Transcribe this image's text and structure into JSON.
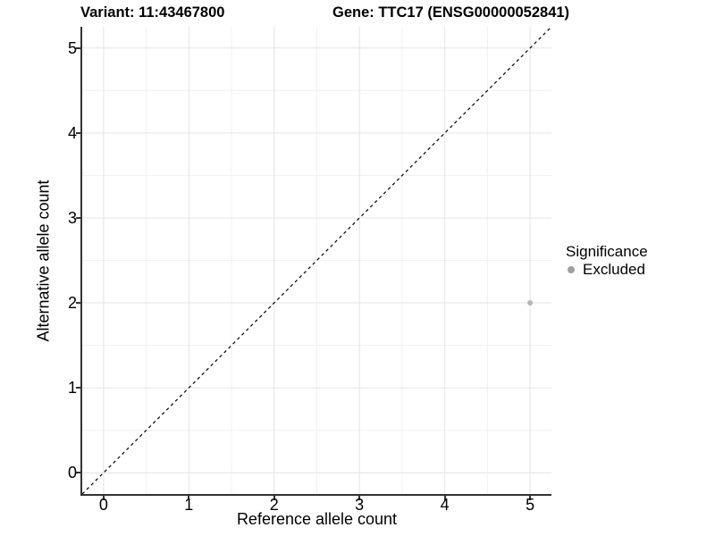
{
  "header": {
    "variant_title": "Variant: 11:43467800",
    "gene_title": "Gene: TTC17 (ENSG00000052841)"
  },
  "axes": {
    "x": {
      "label": "Reference allele count",
      "tick_labels": [
        "0",
        "1",
        "2",
        "3",
        "4",
        "5"
      ]
    },
    "y": {
      "label": "Alternative allele count",
      "tick_labels": [
        "0",
        "1",
        "2",
        "3",
        "4",
        "5"
      ]
    }
  },
  "legend": {
    "title": "Significance",
    "items": [
      {
        "label": "Excluded",
        "color": "#a0a0a0"
      }
    ]
  },
  "chart_data": {
    "type": "scatter",
    "title": "Variant: 11:43467800",
    "subtitle": "Gene: TTC17 (ENSG00000052841)",
    "xlabel": "Reference allele count",
    "ylabel": "Alternative allele count",
    "xlim": [
      -0.25,
      5.25
    ],
    "ylim": [
      -0.25,
      5.25
    ],
    "x_ticks": [
      0,
      1,
      2,
      3,
      4,
      5
    ],
    "y_ticks": [
      0,
      1,
      2,
      3,
      4,
      5
    ],
    "minor_grid": [
      0.5,
      1.5,
      2.5,
      3.5,
      4.5
    ],
    "grid": true,
    "legend_position": "right",
    "series": [
      {
        "name": "Excluded",
        "color": "#b5b5b5",
        "points": [
          {
            "x": 5,
            "y": 2
          }
        ]
      }
    ],
    "reference_line": {
      "kind": "identity",
      "slope": 1,
      "intercept": 0,
      "style": "dashed",
      "color": "#000000"
    }
  },
  "colors": {
    "background": "#ffffff",
    "text": "#000000",
    "axis_line": "#333333",
    "grid_major": "#e4e4e4",
    "grid_minor": "#f1f1f1",
    "point": "#b5b5b5",
    "legend_key": "#a0a0a0",
    "dashed_line": "#000000"
  }
}
